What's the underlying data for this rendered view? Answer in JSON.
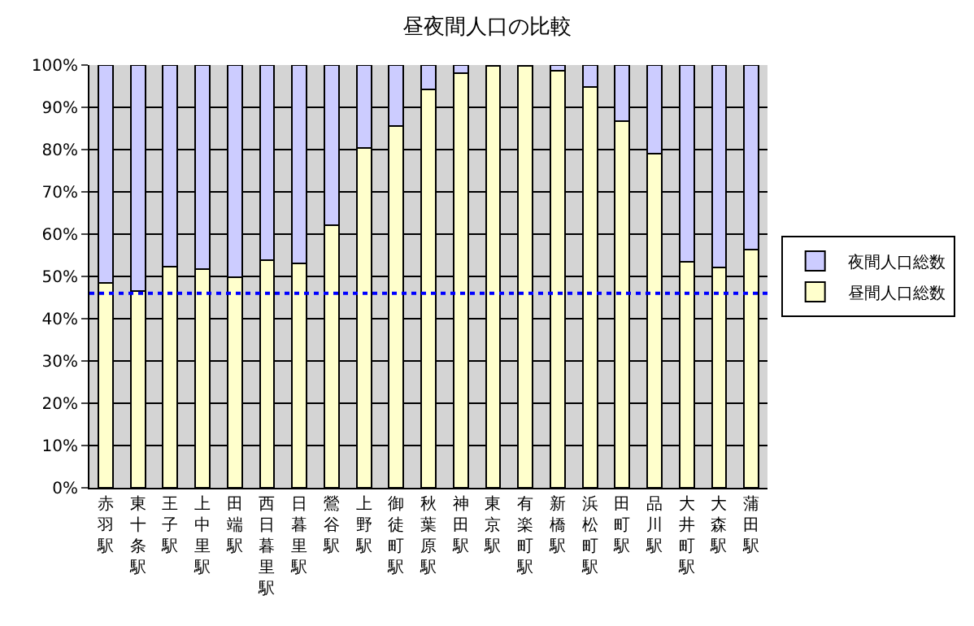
{
  "chart_data": {
    "type": "bar",
    "stacked": true,
    "title": "昼夜間人口の比較",
    "categories": [
      "赤羽駅",
      "東十条駅",
      "王子駅",
      "上中里駅",
      "田端駅",
      "西日暮里駅",
      "日暮里駅",
      "鶯谷駅",
      "上野駅",
      "御徒町駅",
      "秋葉原駅",
      "神田駅",
      "東京駅",
      "有楽町駅",
      "新橋駅",
      "浜松町駅",
      "田町駅",
      "品川駅",
      "大井町駅",
      "大森駅",
      "蒲田駅"
    ],
    "series": [
      {
        "name": "昼間人口総数",
        "color": "#ffffcc",
        "values": [
          48.5,
          46.6,
          52.3,
          51.8,
          49.9,
          53.8,
          53.1,
          62.2,
          80.4,
          85.5,
          94.2,
          98.1,
          99.9,
          99.9,
          98.6,
          94.9,
          86.7,
          79.1,
          53.5,
          52.2,
          56.4
        ]
      },
      {
        "name": "夜間人口総数",
        "color": "#ccccff",
        "values": [
          51.5,
          53.4,
          47.7,
          48.2,
          50.1,
          46.2,
          46.9,
          37.8,
          19.6,
          14.5,
          5.8,
          1.9,
          0.1,
          0.1,
          1.4,
          5.1,
          13.3,
          20.9,
          46.5,
          47.8,
          43.6
        ]
      }
    ],
    "ylim": [
      0,
      100
    ],
    "yticks": [
      {
        "value": 0,
        "label": "0%"
      },
      {
        "value": 10,
        "label": "10%"
      },
      {
        "value": 20,
        "label": "20%"
      },
      {
        "value": 30,
        "label": "30%"
      },
      {
        "value": 40,
        "label": "40%"
      },
      {
        "value": 50,
        "label": "50%"
      },
      {
        "value": 60,
        "label": "60%"
      },
      {
        "value": 70,
        "label": "70%"
      },
      {
        "value": 80,
        "label": "80%"
      },
      {
        "value": 90,
        "label": "90%"
      },
      {
        "value": 100,
        "label": "100%"
      }
    ],
    "ref_lines": [
      {
        "axis": "y",
        "value": 46,
        "color": "#0000ff",
        "line_style": "dotted"
      }
    ],
    "grid": "y",
    "legend": "right"
  }
}
